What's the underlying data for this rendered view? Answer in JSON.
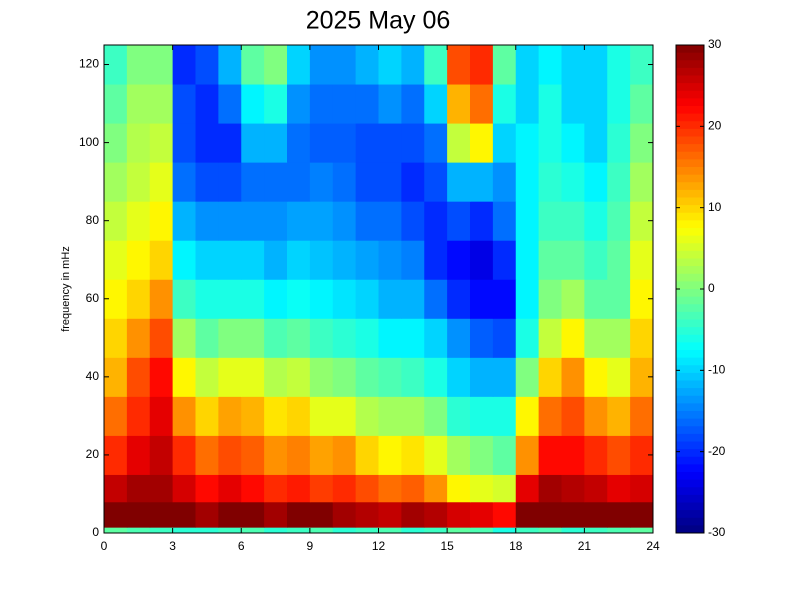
{
  "chart_data": {
    "type": "heatmap",
    "title": "2025 May 06",
    "ylabel": "frequency in mHz",
    "colormap": "jet",
    "xbins": [
      0,
      1,
      2,
      3,
      4,
      5,
      6,
      7,
      8,
      9,
      10,
      11,
      12,
      13,
      14,
      15,
      16,
      17,
      18,
      19,
      20,
      21,
      22,
      23,
      24
    ],
    "ybins": [
      0,
      1.5,
      8,
      15,
      25,
      35,
      45,
      55,
      65,
      75,
      85,
      95,
      105,
      115,
      125
    ],
    "values": [
      [
        -2,
        -3,
        -4,
        -5,
        -5,
        -4,
        -3,
        -5,
        -4,
        -3,
        -5,
        -4,
        -3,
        -5,
        -4,
        -2,
        -3,
        -6,
        -4,
        -3,
        -5,
        -4,
        -3,
        -2
      ],
      [
        30,
        30,
        30,
        30,
        28,
        30,
        30,
        28,
        30,
        30,
        28,
        27,
        26,
        28,
        27,
        25,
        24,
        22,
        30,
        30,
        30,
        30,
        30,
        30
      ],
      [
        26,
        28,
        28,
        25,
        22,
        24,
        22,
        20,
        21,
        19,
        20,
        18,
        16,
        17,
        14,
        8,
        6,
        5,
        24,
        28,
        27,
        26,
        24,
        25
      ],
      [
        20,
        24,
        26,
        20,
        16,
        18,
        17,
        14,
        15,
        13,
        14,
        10,
        8,
        9,
        6,
        2,
        0,
        -2,
        14,
        22,
        22,
        20,
        18,
        20
      ],
      [
        16,
        20,
        24,
        14,
        10,
        13,
        12,
        9,
        10,
        6,
        6,
        3,
        2,
        2,
        0,
        -5,
        -6,
        -6,
        8,
        16,
        18,
        14,
        12,
        16
      ],
      [
        12,
        18,
        22,
        8,
        4,
        6,
        6,
        3,
        4,
        1,
        0,
        -2,
        -3,
        -4,
        -6,
        -10,
        -12,
        -12,
        0,
        10,
        14,
        8,
        6,
        12
      ],
      [
        10,
        14,
        18,
        2,
        -2,
        0,
        0,
        -3,
        -2,
        -4,
        -5,
        -6,
        -8,
        -8,
        -10,
        -14,
        -17,
        -18,
        -6,
        4,
        8,
        2,
        2,
        10
      ],
      [
        8,
        10,
        14,
        -4,
        -6,
        -6,
        -6,
        -8,
        -7,
        -8,
        -9,
        -10,
        -12,
        -12,
        -16,
        -20,
        -22,
        -22,
        -8,
        0,
        2,
        -2,
        -2,
        8
      ],
      [
        6,
        8,
        10,
        -8,
        -10,
        -10,
        -10,
        -12,
        -10,
        -11,
        -12,
        -13,
        -14,
        -15,
        -20,
        -22,
        -24,
        -20,
        -8,
        -2,
        -2,
        -4,
        -2,
        6
      ],
      [
        4,
        6,
        8,
        -12,
        -14,
        -14,
        -14,
        -14,
        -13,
        -13,
        -14,
        -16,
        -16,
        -18,
        -20,
        -18,
        -20,
        -16,
        -8,
        -4,
        -4,
        -6,
        -3,
        4
      ],
      [
        2,
        4,
        6,
        -16,
        -18,
        -18,
        -16,
        -16,
        -16,
        -15,
        -16,
        -18,
        -18,
        -20,
        -18,
        -12,
        -12,
        -14,
        -8,
        -5,
        -6,
        -8,
        -4,
        2
      ],
      [
        0,
        3,
        4,
        -18,
        -20,
        -20,
        -12,
        -12,
        -16,
        -17,
        -17,
        -18,
        -18,
        -18,
        -16,
        4,
        8,
        -10,
        -8,
        -6,
        -8,
        -10,
        -5,
        0
      ],
      [
        -2,
        2,
        2,
        -18,
        -20,
        -16,
        -8,
        -6,
        -14,
        -16,
        -16,
        -16,
        -14,
        -16,
        -10,
        12,
        16,
        -6,
        -10,
        -6,
        -10,
        -10,
        -6,
        -2
      ],
      [
        -4,
        0,
        0,
        -20,
        -18,
        -12,
        -2,
        0,
        -10,
        -14,
        -14,
        -12,
        -10,
        -12,
        -4,
        18,
        20,
        -2,
        -10,
        -8,
        -10,
        -10,
        -6,
        -4
      ]
    ],
    "xlim": [
      0,
      24
    ],
    "xticks": [
      0,
      3,
      6,
      9,
      12,
      15,
      18,
      21,
      24
    ],
    "ylim": [
      0,
      125
    ],
    "yticks": [
      0,
      20,
      40,
      60,
      80,
      100,
      120
    ],
    "clim": [
      -30,
      30
    ],
    "cticks": [
      -30,
      -20,
      -10,
      0,
      10,
      20,
      30
    ]
  }
}
